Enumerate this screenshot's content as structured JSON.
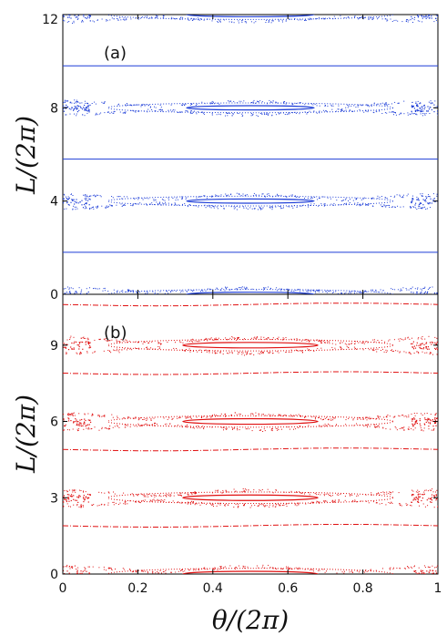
{
  "chart_data": [
    {
      "type": "scatter",
      "panel_label": "(a)",
      "color": "#1f3fd8",
      "xlim": [
        0,
        1
      ],
      "ylim": [
        0,
        12
      ],
      "yticks": [
        0,
        4,
        8,
        12
      ],
      "ytick_labels": [
        "0",
        "4",
        "8",
        "12"
      ],
      "ylabel": "L/(2π)",
      "separatrix_levels": [
        0,
        4,
        8,
        12
      ],
      "horizontal_lines": [
        1.8,
        5.8,
        9.8
      ],
      "islands": [
        {
          "center_x": 0.5,
          "center_y": 0,
          "outer_halfwidth": 0.38,
          "outer_halfheight": 0.28,
          "inner_halfwidth": 0.17,
          "inner_halfheight": 0.1
        },
        {
          "center_x": 0.5,
          "center_y": 4,
          "outer_halfwidth": 0.38,
          "outer_halfheight": 0.28,
          "inner_halfwidth": 0.17,
          "inner_halfheight": 0.1
        },
        {
          "center_x": 0.5,
          "center_y": 8,
          "outer_halfwidth": 0.38,
          "outer_halfheight": 0.28,
          "inner_halfwidth": 0.17,
          "inner_halfheight": 0.1
        },
        {
          "center_x": 0.5,
          "center_y": 12,
          "outer_halfwidth": 0.38,
          "outer_halfheight": 0.28,
          "inner_halfwidth": 0.17,
          "inner_halfheight": 0.1
        }
      ]
    },
    {
      "type": "scatter",
      "panel_label": "(b)",
      "color": "#e01010",
      "xlim": [
        0,
        1
      ],
      "ylim": [
        0,
        11
      ],
      "xticks": [
        0,
        0.2,
        0.4,
        0.6,
        0.8,
        1
      ],
      "xtick_labels": [
        "0",
        "0.2",
        "0.4",
        "0.6",
        "0.8",
        "1"
      ],
      "xlabel": "θ/(2π)",
      "yticks": [
        0,
        3,
        6,
        9
      ],
      "ytick_labels": [
        "0",
        "3",
        "6",
        "9"
      ],
      "ylabel": "L/(2π)",
      "separatrix_levels": [
        0,
        3,
        6,
        9
      ],
      "horizontal_lines": [
        1.9,
        4.9,
        7.9,
        10.6
      ],
      "islands": [
        {
          "center_x": 0.5,
          "center_y": 0,
          "outer_halfwidth": 0.38,
          "outer_halfheight": 0.3,
          "inner_halfwidth": 0.18,
          "inner_halfheight": 0.12
        },
        {
          "center_x": 0.5,
          "center_y": 3,
          "outer_halfwidth": 0.38,
          "outer_halfheight": 0.3,
          "inner_halfwidth": 0.18,
          "inner_halfheight": 0.12
        },
        {
          "center_x": 0.5,
          "center_y": 6,
          "outer_halfwidth": 0.38,
          "outer_halfheight": 0.3,
          "inner_halfwidth": 0.18,
          "inner_halfheight": 0.12
        },
        {
          "center_x": 0.5,
          "center_y": 9,
          "outer_halfwidth": 0.38,
          "outer_halfheight": 0.3,
          "inner_halfwidth": 0.18,
          "inner_halfheight": 0.12
        }
      ]
    }
  ]
}
